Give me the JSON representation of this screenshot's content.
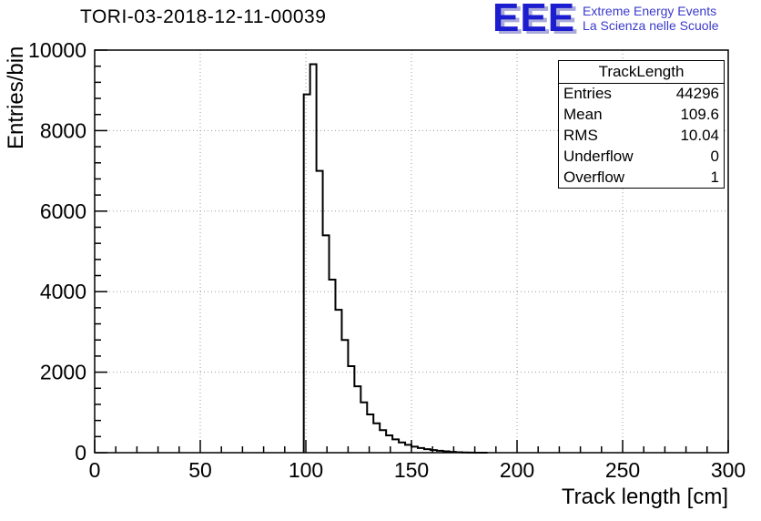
{
  "title": "TORI-03-2018-12-11-00039",
  "logo": {
    "text": "EEE",
    "line1": "Extreme Energy Events",
    "line2": "La Scienza nelle Scuole",
    "color": "#1d1dd0"
  },
  "stats": {
    "title": "TrackLength",
    "rows": [
      {
        "label": "Entries",
        "value": "44296"
      },
      {
        "label": "Mean",
        "value": "109.6"
      },
      {
        "label": "RMS",
        "value": "10.04"
      },
      {
        "label": "Underflow",
        "value": "0"
      },
      {
        "label": "Overflow",
        "value": "1"
      }
    ]
  },
  "chart_data": {
    "type": "bar",
    "title": "TORI-03-2018-12-11-00039",
    "xlabel": "Track length [cm]",
    "ylabel": "Entries/bin",
    "xlim": [
      0,
      300
    ],
    "ylim": [
      0,
      10000
    ],
    "x_ticks": [
      0,
      50,
      100,
      150,
      200,
      250,
      300
    ],
    "y_ticks": [
      0,
      2000,
      4000,
      6000,
      8000,
      10000
    ],
    "x_minor_step": 10,
    "y_minor_step": 400,
    "grid": true,
    "line_color": "#000000",
    "bins": {
      "start": 99,
      "width": 3,
      "counts": [
        8900,
        9650,
        7000,
        5400,
        4300,
        3550,
        2800,
        2150,
        1650,
        1250,
        950,
        730,
        560,
        430,
        330,
        255,
        195,
        150,
        115,
        88,
        66,
        48,
        33,
        20,
        11,
        6,
        3,
        1,
        0
      ]
    }
  }
}
